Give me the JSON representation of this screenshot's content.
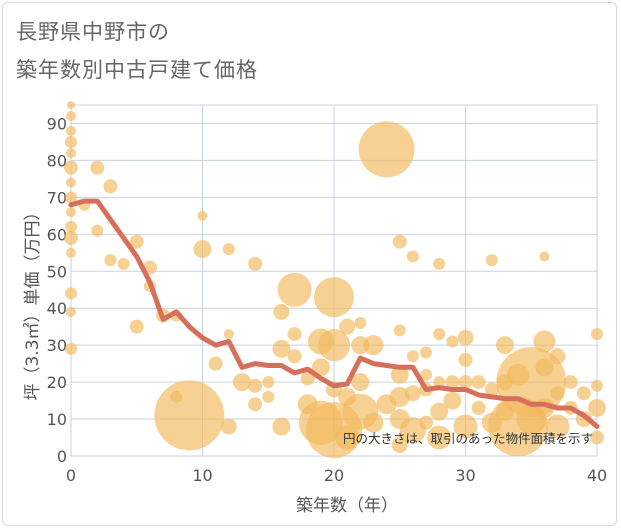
{
  "title_line1": "長野県中野市の",
  "title_line2": "築年数別中古戸建て価格",
  "chart_data": {
    "type": "scatter",
    "title": "長野県中野市の 築年数別中古戸建て価格",
    "xlabel": "築年数（年）",
    "ylabel": "坪（3.3㎡）単価（万円）",
    "xlim": [
      0,
      40
    ],
    "ylim": [
      0,
      95
    ],
    "xticks": [
      "0",
      "10",
      "20",
      "30",
      "40"
    ],
    "yticks": [
      "0",
      "10",
      "20",
      "30",
      "40",
      "50",
      "60",
      "70",
      "80",
      "90"
    ],
    "grid": true,
    "note": "円の大きさは、取引のあった物件面積を示す",
    "colors": {
      "bubble": "#f3b85a",
      "line": "#d6705a"
    },
    "series": [
      {
        "type": "bubble",
        "points": [
          {
            "x": 0,
            "y": 95,
            "r": 4
          },
          {
            "x": 0,
            "y": 92,
            "r": 5
          },
          {
            "x": 0,
            "y": 88,
            "r": 5
          },
          {
            "x": 0,
            "y": 85,
            "r": 6
          },
          {
            "x": 0,
            "y": 82,
            "r": 5
          },
          {
            "x": 0,
            "y": 78,
            "r": 7
          },
          {
            "x": 0,
            "y": 74,
            "r": 5
          },
          {
            "x": 0,
            "y": 70,
            "r": 6
          },
          {
            "x": 0,
            "y": 66,
            "r": 5
          },
          {
            "x": 0,
            "y": 62,
            "r": 6
          },
          {
            "x": 0,
            "y": 59,
            "r": 7
          },
          {
            "x": 0,
            "y": 55,
            "r": 5
          },
          {
            "x": 0,
            "y": 44,
            "r": 6
          },
          {
            "x": 0,
            "y": 39,
            "r": 5
          },
          {
            "x": 0,
            "y": 29,
            "r": 6
          },
          {
            "x": 1,
            "y": 68,
            "r": 6
          },
          {
            "x": 2,
            "y": 78,
            "r": 7
          },
          {
            "x": 2,
            "y": 61,
            "r": 6
          },
          {
            "x": 3,
            "y": 73,
            "r": 7
          },
          {
            "x": 3,
            "y": 53,
            "r": 6
          },
          {
            "x": 4,
            "y": 52,
            "r": 6
          },
          {
            "x": 5,
            "y": 58,
            "r": 7
          },
          {
            "x": 5,
            "y": 35,
            "r": 7
          },
          {
            "x": 6,
            "y": 51,
            "r": 7
          },
          {
            "x": 6,
            "y": 46,
            "r": 6
          },
          {
            "x": 7,
            "y": 38,
            "r": 7
          },
          {
            "x": 8,
            "y": 38,
            "r": 6
          },
          {
            "x": 8,
            "y": 16,
            "r": 6
          },
          {
            "x": 9,
            "y": 11,
            "r": 35
          },
          {
            "x": 10,
            "y": 65,
            "r": 5
          },
          {
            "x": 10,
            "y": 56,
            "r": 9
          },
          {
            "x": 11,
            "y": 25,
            "r": 7
          },
          {
            "x": 12,
            "y": 56,
            "r": 6
          },
          {
            "x": 12,
            "y": 33,
            "r": 5
          },
          {
            "x": 12,
            "y": 8,
            "r": 8
          },
          {
            "x": 13,
            "y": 20,
            "r": 9
          },
          {
            "x": 14,
            "y": 52,
            "r": 7
          },
          {
            "x": 14,
            "y": 19,
            "r": 7
          },
          {
            "x": 14,
            "y": 14,
            "r": 7
          },
          {
            "x": 15,
            "y": 20,
            "r": 6
          },
          {
            "x": 15,
            "y": 16,
            "r": 6
          },
          {
            "x": 16,
            "y": 39,
            "r": 8
          },
          {
            "x": 16,
            "y": 29,
            "r": 9
          },
          {
            "x": 16,
            "y": 8,
            "r": 9
          },
          {
            "x": 17,
            "y": 45,
            "r": 17
          },
          {
            "x": 17,
            "y": 33,
            "r": 7
          },
          {
            "x": 17,
            "y": 27,
            "r": 7
          },
          {
            "x": 18,
            "y": 21,
            "r": 7
          },
          {
            "x": 18,
            "y": 14,
            "r": 10
          },
          {
            "x": 19,
            "y": 31,
            "r": 13
          },
          {
            "x": 19,
            "y": 24,
            "r": 9
          },
          {
            "x": 19,
            "y": 9,
            "r": 22
          },
          {
            "x": 20,
            "y": 43,
            "r": 20
          },
          {
            "x": 20,
            "y": 30,
            "r": 16
          },
          {
            "x": 20,
            "y": 18,
            "r": 8
          },
          {
            "x": 20,
            "y": 7,
            "r": 28
          },
          {
            "x": 21,
            "y": 35,
            "r": 8
          },
          {
            "x": 21,
            "y": 16,
            "r": 9
          },
          {
            "x": 21,
            "y": 5,
            "r": 12
          },
          {
            "x": 22,
            "y": 36,
            "r": 6
          },
          {
            "x": 22,
            "y": 30,
            "r": 9
          },
          {
            "x": 22,
            "y": 20,
            "r": 9
          },
          {
            "x": 22,
            "y": 12,
            "r": 18
          },
          {
            "x": 23,
            "y": 30,
            "r": 10
          },
          {
            "x": 23,
            "y": 9,
            "r": 10
          },
          {
            "x": 24,
            "y": 83,
            "r": 28
          },
          {
            "x": 24,
            "y": 14,
            "r": 10
          },
          {
            "x": 25,
            "y": 58,
            "r": 7
          },
          {
            "x": 25,
            "y": 34,
            "r": 6
          },
          {
            "x": 25,
            "y": 22,
            "r": 9
          },
          {
            "x": 25,
            "y": 16,
            "r": 10
          },
          {
            "x": 25,
            "y": 10,
            "r": 10
          },
          {
            "x": 25,
            "y": 3,
            "r": 8
          },
          {
            "x": 26,
            "y": 54,
            "r": 6
          },
          {
            "x": 26,
            "y": 27,
            "r": 6
          },
          {
            "x": 26,
            "y": 17,
            "r": 8
          },
          {
            "x": 26,
            "y": 7,
            "r": 13
          },
          {
            "x": 27,
            "y": 28,
            "r": 6
          },
          {
            "x": 27,
            "y": 22,
            "r": 6
          },
          {
            "x": 27,
            "y": 18,
            "r": 7
          },
          {
            "x": 27,
            "y": 9,
            "r": 7
          },
          {
            "x": 28,
            "y": 52,
            "r": 6
          },
          {
            "x": 28,
            "y": 33,
            "r": 6
          },
          {
            "x": 28,
            "y": 20,
            "r": 6
          },
          {
            "x": 28,
            "y": 12,
            "r": 9
          },
          {
            "x": 28,
            "y": 5,
            "r": 12
          },
          {
            "x": 29,
            "y": 31,
            "r": 6
          },
          {
            "x": 29,
            "y": 20,
            "r": 7
          },
          {
            "x": 29,
            "y": 15,
            "r": 9
          },
          {
            "x": 30,
            "y": 32,
            "r": 8
          },
          {
            "x": 30,
            "y": 26,
            "r": 7
          },
          {
            "x": 30,
            "y": 20,
            "r": 7
          },
          {
            "x": 30,
            "y": 8,
            "r": 12
          },
          {
            "x": 31,
            "y": 20,
            "r": 7
          },
          {
            "x": 31,
            "y": 13,
            "r": 7
          },
          {
            "x": 32,
            "y": 53,
            "r": 6
          },
          {
            "x": 32,
            "y": 18,
            "r": 7
          },
          {
            "x": 32,
            "y": 9,
            "r": 10
          },
          {
            "x": 33,
            "y": 30,
            "r": 9
          },
          {
            "x": 33,
            "y": 20,
            "r": 8
          },
          {
            "x": 33,
            "y": 12,
            "r": 9
          },
          {
            "x": 34,
            "y": 22,
            "r": 11
          },
          {
            "x": 34,
            "y": 8,
            "r": 30
          },
          {
            "x": 35,
            "y": 20,
            "r": 35
          },
          {
            "x": 35,
            "y": 10,
            "r": 15
          },
          {
            "x": 36,
            "y": 54,
            "r": 5
          },
          {
            "x": 36,
            "y": 31,
            "r": 11
          },
          {
            "x": 36,
            "y": 24,
            "r": 9
          },
          {
            "x": 36,
            "y": 13,
            "r": 10
          },
          {
            "x": 37,
            "y": 27,
            "r": 8
          },
          {
            "x": 37,
            "y": 17,
            "r": 7
          },
          {
            "x": 37,
            "y": 8,
            "r": 12
          },
          {
            "x": 38,
            "y": 20,
            "r": 7
          },
          {
            "x": 38,
            "y": 13,
            "r": 7
          },
          {
            "x": 39,
            "y": 17,
            "r": 7
          },
          {
            "x": 39,
            "y": 10,
            "r": 8
          },
          {
            "x": 40,
            "y": 33,
            "r": 6
          },
          {
            "x": 40,
            "y": 19,
            "r": 6
          },
          {
            "x": 40,
            "y": 13,
            "r": 9
          },
          {
            "x": 40,
            "y": 5,
            "r": 7
          }
        ]
      },
      {
        "type": "line",
        "x": [
          0,
          1,
          2,
          3,
          4,
          5,
          6,
          7,
          8,
          9,
          10,
          11,
          12,
          13,
          14,
          15,
          16,
          17,
          18,
          19,
          20,
          21,
          22,
          23,
          24,
          25,
          26,
          27,
          28,
          29,
          30,
          31,
          32,
          33,
          34,
          35,
          36,
          37,
          38,
          39,
          40
        ],
        "values": [
          68,
          69,
          69,
          64,
          59,
          54,
          47,
          37,
          39,
          35,
          32,
          30,
          31,
          24,
          25,
          24.5,
          24.5,
          22.5,
          23.5,
          21,
          19,
          19.5,
          26.5,
          25,
          24.5,
          24,
          24,
          18,
          18.5,
          18,
          18,
          16.5,
          16,
          15.5,
          15.5,
          14,
          14,
          13,
          13,
          11,
          8
        ]
      }
    ]
  }
}
